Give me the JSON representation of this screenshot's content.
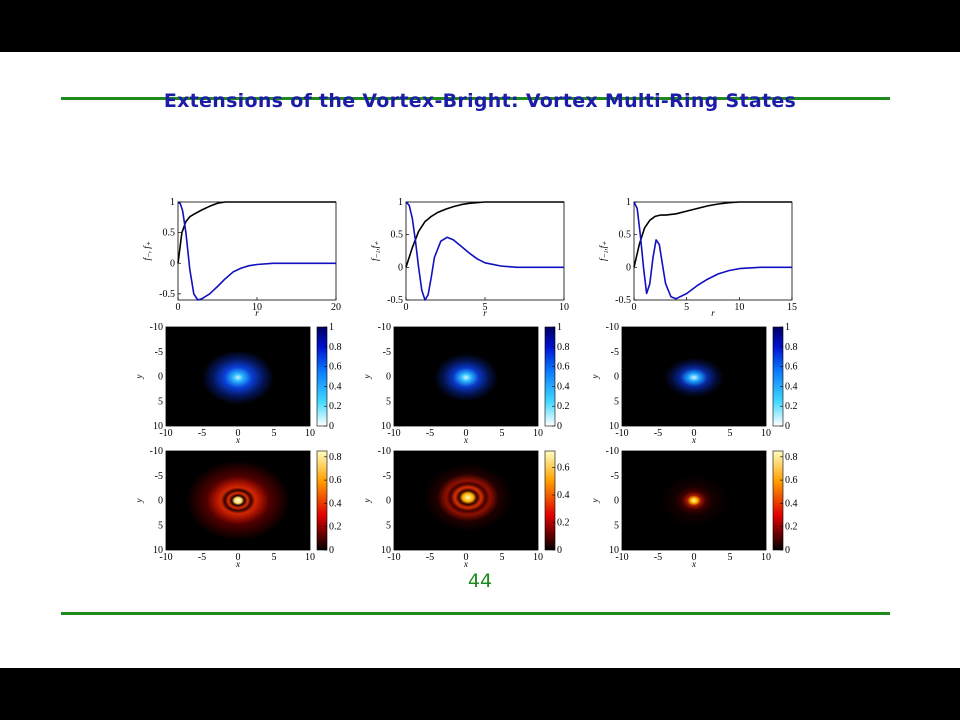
{
  "slide": {
    "title": "Extensions of the Vortex-Bright: Vortex Multi-Ring States",
    "page_number": "44",
    "rule_color": "#1e8a1e",
    "title_color": "#1c1ca8"
  },
  "chart_data": [
    {
      "type": "line",
      "xlabel": "r",
      "ylabel": "f₋, f₊",
      "xlim": [
        0,
        20
      ],
      "ylim": [
        -0.6,
        1
      ],
      "xticks": [
        "0",
        "10",
        "20"
      ],
      "yticks": [
        "1",
        "0.5",
        "0",
        "-0.5"
      ],
      "series": [
        {
          "color": "#000000",
          "x": [
            0,
            0.5,
            1,
            1.5,
            2,
            3,
            4,
            5,
            6,
            7,
            8,
            10,
            14,
            20
          ],
          "y": [
            0,
            0.5,
            0.68,
            0.76,
            0.8,
            0.87,
            0.93,
            0.98,
            1.0,
            1.0,
            1.0,
            1.0,
            1.0,
            1.0
          ]
        },
        {
          "color": "#1010c0",
          "x": [
            0,
            0.3,
            0.6,
            1,
            1.5,
            2,
            2.5,
            3,
            4,
            5,
            6,
            7,
            8,
            9,
            10,
            12,
            14,
            20
          ],
          "y": [
            1,
            0.97,
            0.85,
            0.5,
            -0.1,
            -0.5,
            -0.6,
            -0.58,
            -0.5,
            -0.38,
            -0.25,
            -0.14,
            -0.08,
            -0.04,
            -0.02,
            0,
            0,
            0
          ]
        }
      ]
    },
    {
      "type": "line",
      "xlabel": "r",
      "ylabel": "f₋₁,f₊",
      "xlim": [
        0,
        10
      ],
      "ylim": [
        -0.5,
        1
      ],
      "xticks": [
        "0",
        "5",
        "10"
      ],
      "yticks": [
        "1",
        "0.5",
        "0",
        "-0.5"
      ],
      "series": [
        {
          "color": "#000000",
          "x": [
            0,
            0.4,
            0.8,
            1.2,
            1.6,
            2,
            2.5,
            3,
            3.5,
            4,
            5,
            6,
            7,
            10
          ],
          "y": [
            0,
            0.3,
            0.55,
            0.7,
            0.78,
            0.84,
            0.89,
            0.93,
            0.96,
            0.98,
            1.0,
            1.0,
            1.0,
            1.0
          ]
        },
        {
          "color": "#1010c0",
          "x": [
            0,
            0.2,
            0.4,
            0.6,
            0.8,
            1,
            1.2,
            1.4,
            1.6,
            1.8,
            2.2,
            2.6,
            3,
            3.5,
            4,
            4.5,
            5,
            6,
            7,
            8,
            10
          ],
          "y": [
            1,
            0.95,
            0.75,
            0.4,
            0,
            -0.35,
            -0.5,
            -0.42,
            -0.15,
            0.15,
            0.4,
            0.46,
            0.42,
            0.32,
            0.22,
            0.13,
            0.07,
            0.02,
            0,
            0,
            0
          ]
        }
      ]
    },
    {
      "type": "line",
      "xlabel": "r",
      "ylabel": "f₋₁,f₊",
      "xlim": [
        0,
        15
      ],
      "ylim": [
        -0.5,
        1
      ],
      "xticks": [
        "0",
        "5",
        "10",
        "15"
      ],
      "yticks": [
        "1",
        "0.5",
        "0",
        "-0.5"
      ],
      "series": [
        {
          "color": "#000000",
          "x": [
            0,
            0.5,
            1,
            1.5,
            2,
            2.5,
            3,
            4,
            5,
            6,
            7,
            8,
            9,
            10,
            15
          ],
          "y": [
            0,
            0.35,
            0.6,
            0.72,
            0.78,
            0.8,
            0.8,
            0.82,
            0.86,
            0.9,
            0.94,
            0.97,
            0.99,
            1.0,
            1.0
          ]
        },
        {
          "color": "#1010c0",
          "x": [
            0,
            0.3,
            0.6,
            0.9,
            1.2,
            1.5,
            1.8,
            2.1,
            2.4,
            2.7,
            3,
            3.5,
            4,
            5,
            6,
            7,
            8,
            9,
            10,
            12,
            15
          ],
          "y": [
            1,
            0.9,
            0.5,
            0,
            -0.4,
            -0.25,
            0.15,
            0.42,
            0.35,
            0.05,
            -0.25,
            -0.45,
            -0.48,
            -0.4,
            -0.28,
            -0.18,
            -0.1,
            -0.05,
            -0.02,
            0,
            0
          ]
        }
      ]
    },
    {
      "type": "heatmap",
      "xlabel": "x",
      "ylabel": "y",
      "xlim": [
        -10,
        10
      ],
      "ylim": [
        10,
        -10
      ],
      "colormap": "blue",
      "colorbar_ticks": [
        "1",
        "0.8",
        "0.6",
        "0.4",
        "0.2",
        "0"
      ],
      "xticks": [
        "-10",
        "-5",
        "0",
        "5",
        "10"
      ],
      "yticks": [
        "-10",
        "-5",
        "0",
        "5",
        "10"
      ]
    },
    {
      "type": "heatmap",
      "xlabel": "x",
      "ylabel": "y",
      "xlim": [
        -10,
        10
      ],
      "ylim": [
        10,
        -10
      ],
      "colormap": "blue",
      "colorbar_ticks": [
        "1",
        "0.8",
        "0.6",
        "0.4",
        "0.2",
        "0"
      ],
      "xticks": [
        "-10",
        "-5",
        "0",
        "5",
        "10"
      ],
      "yticks": [
        "-10",
        "-5",
        "0",
        "5",
        "10"
      ]
    },
    {
      "type": "heatmap",
      "xlabel": "x",
      "ylabel": "y",
      "xlim": [
        -10,
        10
      ],
      "ylim": [
        10,
        -10
      ],
      "colormap": "blue",
      "colorbar_ticks": [
        "1",
        "0.8",
        "0.6",
        "0.4",
        "0.2",
        "0"
      ],
      "xticks": [
        "-10",
        "-5",
        "0",
        "5",
        "10"
      ],
      "yticks": [
        "-10",
        "-5",
        "0",
        "5",
        "10"
      ]
    },
    {
      "type": "heatmap",
      "xlabel": "x",
      "ylabel": "y",
      "xlim": [
        -10,
        10
      ],
      "ylim": [
        10,
        -10
      ],
      "colormap": "hot",
      "colorbar_ticks": [
        "0.8",
        "0.6",
        "0.4",
        "0.2",
        "0"
      ],
      "xticks": [
        "-10",
        "-5",
        "0",
        "5",
        "10"
      ],
      "yticks": [
        "-10",
        "-5",
        "0",
        "5",
        "10"
      ]
    },
    {
      "type": "heatmap",
      "xlabel": "x",
      "ylabel": "y",
      "xlim": [
        -10,
        10
      ],
      "ylim": [
        10,
        -10
      ],
      "colormap": "hot",
      "colorbar_ticks": [
        "0.6",
        "0.4",
        "0.2",
        "0"
      ],
      "xticks": [
        "-10",
        "-5",
        "0",
        "5",
        "10"
      ],
      "yticks": [
        "-10",
        "-5",
        "0",
        "5",
        "10"
      ]
    },
    {
      "type": "heatmap",
      "xlabel": "x",
      "ylabel": "y",
      "xlim": [
        -10,
        10
      ],
      "ylim": [
        10,
        -10
      ],
      "colormap": "hot",
      "colorbar_ticks": [
        "0.8",
        "0.6",
        "0.4",
        "0.2",
        "0"
      ],
      "xticks": [
        "-10",
        "-5",
        "0",
        "5",
        "10"
      ],
      "yticks": [
        "-10",
        "-5",
        "0",
        "5",
        "10"
      ]
    }
  ]
}
